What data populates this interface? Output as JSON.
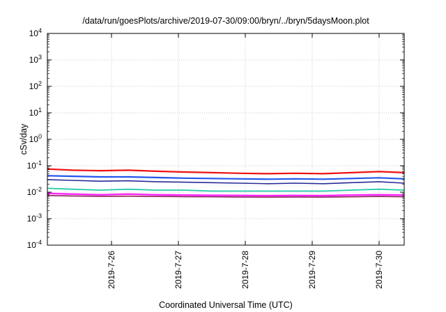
{
  "chart_data": {
    "type": "line",
    "title": "/data/run/goesPlots/archive/2019-07-30/09:00/bryn/../bryn/5daysMoon.plot",
    "xlabel": "Coordinated Universal Time (UTC)",
    "ylabel": "cSv/day",
    "y_scale": "log",
    "ylim": [
      0.0001,
      10000
    ],
    "xlim": [
      "2019-07-25 01:00",
      "2019-07-30 09:00"
    ],
    "y_ticks": [
      {
        "value": 0.0001,
        "base": "10",
        "exp": "-4"
      },
      {
        "value": 0.001,
        "base": "10",
        "exp": "-3"
      },
      {
        "value": 0.01,
        "base": "10",
        "exp": "-2"
      },
      {
        "value": 0.1,
        "base": "10",
        "exp": "-1"
      },
      {
        "value": 1,
        "base": "10",
        "exp": "0"
      },
      {
        "value": 10,
        "base": "10",
        "exp": "1"
      },
      {
        "value": 100,
        "base": "10",
        "exp": "2"
      },
      {
        "value": 1000,
        "base": "10",
        "exp": "3"
      },
      {
        "value": 10000,
        "base": "10",
        "exp": "4"
      }
    ],
    "x_ticks": [
      {
        "date": "2019-07-26",
        "label": "2019-7-26"
      },
      {
        "date": "2019-07-27",
        "label": "2019-7-27"
      },
      {
        "date": "2019-07-28",
        "label": "2019-7-28"
      },
      {
        "date": "2019-07-29",
        "label": "2019-7-29"
      },
      {
        "date": "2019-07-30",
        "label": "2019-7-30"
      }
    ],
    "grid": true,
    "legend": "none",
    "colors": {
      "red": "#ee1111",
      "blue": "#2255ee",
      "navy": "#2a2a99",
      "teal": "#22ccaa",
      "magenta": "#ff22ff",
      "maroon": "#8a2255"
    },
    "series": [
      {
        "color": "red",
        "x": [
          "2019-07-25 01:00",
          "2019-07-25 10:00",
          "2019-07-25 20:00",
          "2019-07-26 06:00",
          "2019-07-26 16:00",
          "2019-07-27 02:00",
          "2019-07-27 12:00",
          "2019-07-27 22:00",
          "2019-07-28 08:00",
          "2019-07-28 18:00",
          "2019-07-29 04:00",
          "2019-07-29 14:00",
          "2019-07-30 00:00",
          "2019-07-30 09:00"
        ],
        "y": [
          0.075,
          0.068,
          0.065,
          0.068,
          0.062,
          0.058,
          0.055,
          0.052,
          0.05,
          0.052,
          0.05,
          0.055,
          0.06,
          0.055
        ]
      },
      {
        "color": "blue",
        "x": [
          "2019-07-25 01:00",
          "2019-07-25 10:00",
          "2019-07-25 20:00",
          "2019-07-26 06:00",
          "2019-07-26 16:00",
          "2019-07-27 02:00",
          "2019-07-27 12:00",
          "2019-07-27 22:00",
          "2019-07-28 08:00",
          "2019-07-28 18:00",
          "2019-07-29 04:00",
          "2019-07-29 14:00",
          "2019-07-30 00:00",
          "2019-07-30 09:00"
        ],
        "y": [
          0.042,
          0.04,
          0.038,
          0.038,
          0.036,
          0.034,
          0.033,
          0.032,
          0.031,
          0.032,
          0.031,
          0.033,
          0.035,
          0.032
        ]
      },
      {
        "color": "navy",
        "x": [
          "2019-07-25 01:00",
          "2019-07-25 10:00",
          "2019-07-25 20:00",
          "2019-07-26 06:00",
          "2019-07-26 16:00",
          "2019-07-27 02:00",
          "2019-07-27 12:00",
          "2019-07-27 22:00",
          "2019-07-28 08:00",
          "2019-07-28 18:00",
          "2019-07-29 04:00",
          "2019-07-29 14:00",
          "2019-07-30 00:00",
          "2019-07-30 09:00"
        ],
        "y": [
          0.03,
          0.028,
          0.026,
          0.027,
          0.025,
          0.024,
          0.023,
          0.022,
          0.021,
          0.022,
          0.021,
          0.023,
          0.025,
          0.022
        ]
      },
      {
        "color": "teal",
        "x": [
          "2019-07-25 01:00",
          "2019-07-25 10:00",
          "2019-07-25 20:00",
          "2019-07-26 06:00",
          "2019-07-26 16:00",
          "2019-07-27 02:00",
          "2019-07-27 12:00",
          "2019-07-27 22:00",
          "2019-07-28 08:00",
          "2019-07-28 18:00",
          "2019-07-29 04:00",
          "2019-07-29 14:00",
          "2019-07-30 00:00",
          "2019-07-30 09:00"
        ],
        "y": [
          0.014,
          0.013,
          0.012,
          0.013,
          0.012,
          0.012,
          0.011,
          0.011,
          0.011,
          0.011,
          0.011,
          0.012,
          0.013,
          0.012
        ]
      },
      {
        "color": "magenta",
        "x": [
          "2019-07-25 01:00",
          "2019-07-25 10:00",
          "2019-07-25 20:00",
          "2019-07-26 06:00",
          "2019-07-26 16:00",
          "2019-07-27 02:00",
          "2019-07-27 12:00",
          "2019-07-27 22:00",
          "2019-07-28 08:00",
          "2019-07-28 18:00",
          "2019-07-29 04:00",
          "2019-07-29 14:00",
          "2019-07-30 00:00",
          "2019-07-30 09:00"
        ],
        "y": [
          0.009,
          0.0085,
          0.008,
          0.0085,
          0.008,
          0.0078,
          0.0076,
          0.0075,
          0.0074,
          0.0075,
          0.0074,
          0.0078,
          0.008,
          0.0078
        ]
      },
      {
        "color": "maroon",
        "x": [
          "2019-07-25 01:00",
          "2019-07-25 10:00",
          "2019-07-25 20:00",
          "2019-07-26 06:00",
          "2019-07-26 16:00",
          "2019-07-27 02:00",
          "2019-07-27 12:00",
          "2019-07-27 22:00",
          "2019-07-28 08:00",
          "2019-07-28 18:00",
          "2019-07-29 04:00",
          "2019-07-29 14:00",
          "2019-07-30 00:00",
          "2019-07-30 09:00"
        ],
        "y": [
          0.0075,
          0.0072,
          0.007,
          0.0071,
          0.0069,
          0.0068,
          0.0067,
          0.0066,
          0.0065,
          0.0066,
          0.0065,
          0.0067,
          0.0069,
          0.0067
        ]
      }
    ]
  }
}
